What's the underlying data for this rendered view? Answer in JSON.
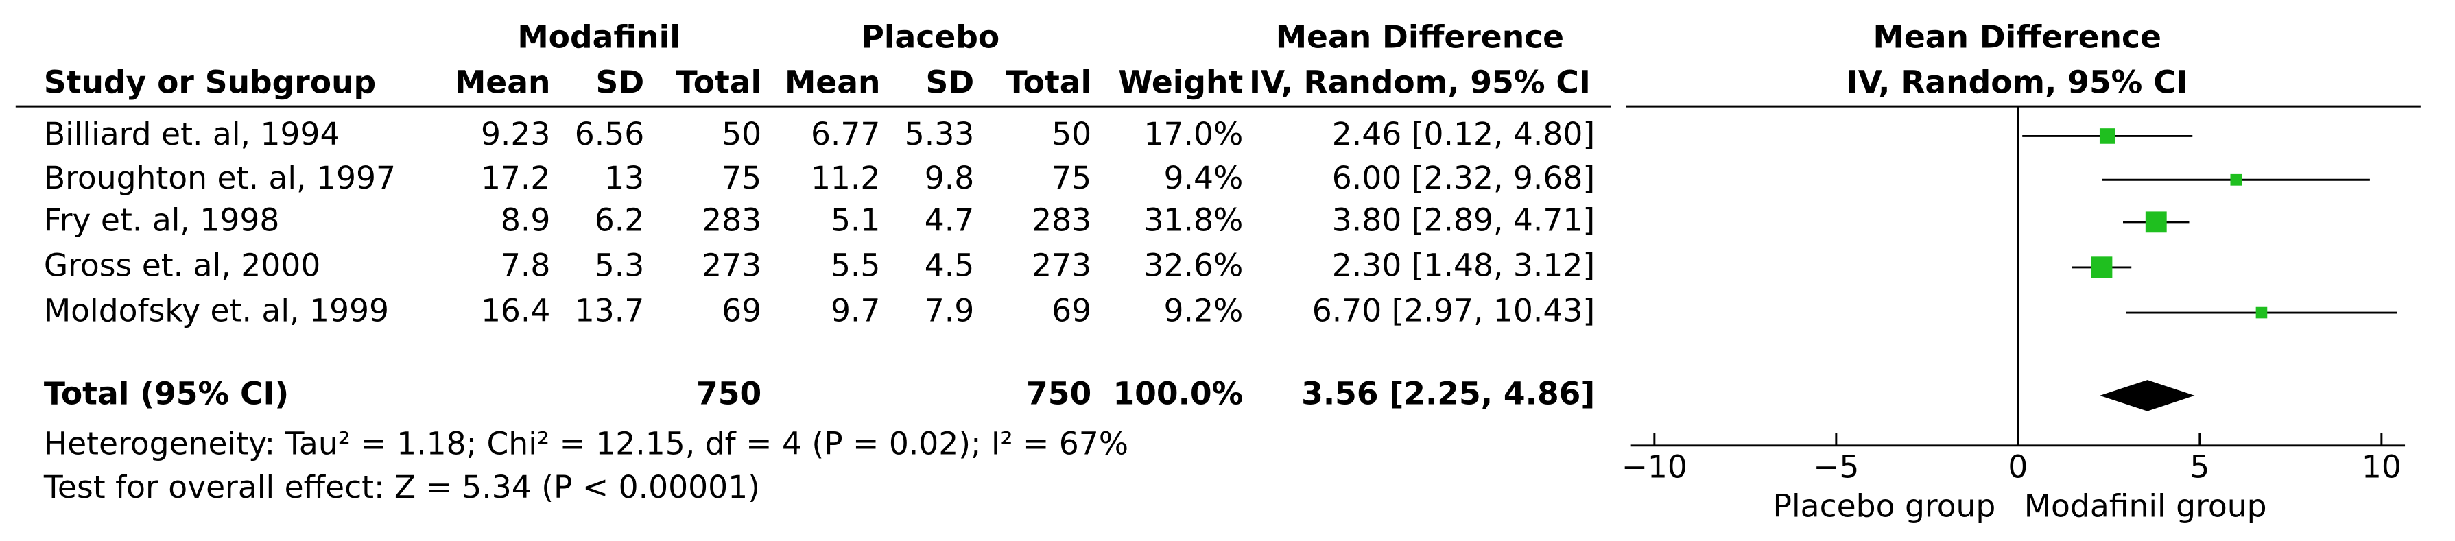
{
  "chart_data": {
    "type": "forest",
    "group_headers": [
      "Modafinil",
      "Placebo"
    ],
    "columns": [
      "Study or Subgroup",
      "Mean",
      "SD",
      "Total",
      "Mean",
      "SD",
      "Total",
      "Weight",
      "IV, Random, 95% CI"
    ],
    "md_header": "Mean Difference",
    "plot_title": "Mean Difference",
    "plot_subtitle": "IV, Random, 95% CI",
    "studies": [
      {
        "name": "Billiard et. al, 1994",
        "modafinil": {
          "mean": 9.23,
          "sd": 6.56,
          "total": 50
        },
        "placebo": {
          "mean": 6.77,
          "sd": 5.33,
          "total": 50
        },
        "weight": 17.0,
        "weight_label": "17.0%",
        "md": 2.46,
        "ci": [
          0.12,
          4.8
        ],
        "ci_label": "2.46 [0.12, 4.80]"
      },
      {
        "name": "Broughton et. al, 1997",
        "modafinil": {
          "mean": 17.2,
          "sd": 13,
          "total": 75
        },
        "placebo": {
          "mean": 11.2,
          "sd": 9.8,
          "total": 75
        },
        "weight": 9.4,
        "weight_label": "9.4%",
        "md": 6.0,
        "ci": [
          2.32,
          9.68
        ],
        "ci_label": "6.00 [2.32, 9.68]"
      },
      {
        "name": "Fry et. al, 1998",
        "modafinil": {
          "mean": 8.9,
          "sd": 6.2,
          "total": 283
        },
        "placebo": {
          "mean": 5.1,
          "sd": 4.7,
          "total": 283
        },
        "weight": 31.8,
        "weight_label": "31.8%",
        "md": 3.8,
        "ci": [
          2.89,
          4.71
        ],
        "ci_label": "3.80 [2.89, 4.71]"
      },
      {
        "name": "Gross et. al, 2000",
        "modafinil": {
          "mean": 7.8,
          "sd": 5.3,
          "total": 273
        },
        "placebo": {
          "mean": 5.5,
          "sd": 4.5,
          "total": 273
        },
        "weight": 32.6,
        "weight_label": "32.6%",
        "md": 2.3,
        "ci": [
          1.48,
          3.12
        ],
        "ci_label": "2.30 [1.48, 3.12]"
      },
      {
        "name": "Moldofsky et. al, 1999",
        "modafinil": {
          "mean": 16.4,
          "sd": 13.7,
          "total": 69
        },
        "placebo": {
          "mean": 9.7,
          "sd": 7.9,
          "total": 69
        },
        "weight": 9.2,
        "weight_label": "9.2%",
        "md": 6.7,
        "ci": [
          2.97,
          10.43
        ],
        "ci_label": "6.70 [2.97, 10.43]"
      }
    ],
    "total": {
      "label": "Total (95% CI)",
      "modafinil_total": 750,
      "placebo_total": 750,
      "weight_label": "100.0%",
      "md": 3.56,
      "ci": [
        2.25,
        4.86
      ],
      "ci_label": "3.56 [2.25, 4.86]"
    },
    "heterogeneity": "Heterogeneity: Tau² = 1.18; Chi² = 12.15, df = 4 (P = 0.02); I² = 67%",
    "overall_effect": "Test for overall effect: Z = 5.34 (P < 0.00001)",
    "xlim": [
      -10,
      10
    ],
    "xticks": [
      {
        "value": -10,
        "label": "−10"
      },
      {
        "value": -5,
        "label": "−5"
      },
      0,
      5,
      10
    ],
    "x_label_left": "Placebo group",
    "x_label_right": "Modafinil group",
    "color": "#1fbf1f",
    "diamond_color": "#000000"
  }
}
